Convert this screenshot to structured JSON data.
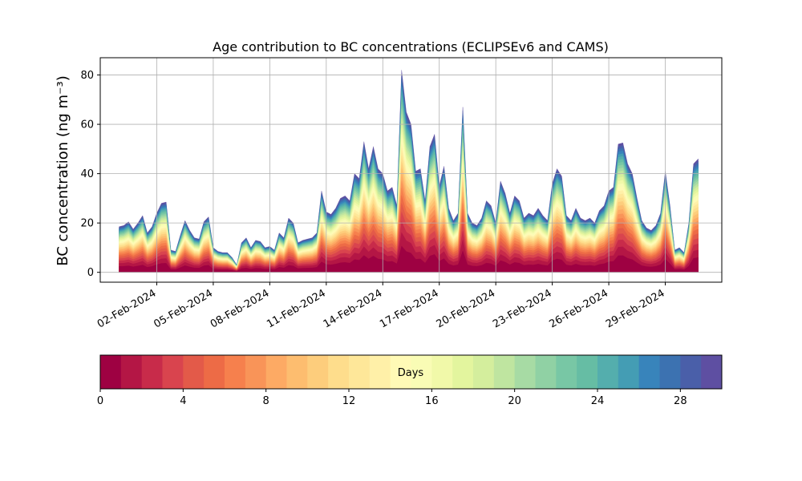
{
  "chart_data": {
    "type": "area",
    "title": "Age contribution to BC concentrations (ECLIPSEv6 and CAMS)",
    "ylabel": "BC concentration (ng m⁻³)",
    "ylim": [
      -4,
      87
    ],
    "yticks": [
      0,
      20,
      40,
      60,
      80
    ],
    "xlim": [
      "2024-01-30",
      "2024-03-03"
    ],
    "xtick_labels": [
      "02-Feb-2024",
      "05-Feb-2024",
      "08-Feb-2024",
      "11-Feb-2024",
      "14-Feb-2024",
      "17-Feb-2024",
      "20-Feb-2024",
      "23-Feb-2024",
      "26-Feb-2024",
      "29-Feb-2024"
    ],
    "xtick_dates": [
      "2024-02-02",
      "2024-02-05",
      "2024-02-08",
      "2024-02-11",
      "2024-02-14",
      "2024-02-17",
      "2024-02-20",
      "2024-02-23",
      "2024-02-26",
      "2024-02-29"
    ],
    "grid": true,
    "colormap": "Spectral",
    "age_bins_days": 30,
    "total_concentration": {
      "x": [
        "2024-01-31 00:00",
        "2024-01-31 06:00",
        "2024-01-31 12:00",
        "2024-01-31 18:00",
        "2024-02-01 00:00",
        "2024-02-01 06:00",
        "2024-02-01 12:00",
        "2024-02-01 18:00",
        "2024-02-02 00:00",
        "2024-02-02 06:00",
        "2024-02-02 12:00",
        "2024-02-02 18:00",
        "2024-02-03 00:00",
        "2024-02-03 06:00",
        "2024-02-03 12:00",
        "2024-02-03 18:00",
        "2024-02-04 00:00",
        "2024-02-04 06:00",
        "2024-02-04 12:00",
        "2024-02-04 18:00",
        "2024-02-05 00:00",
        "2024-02-05 06:00",
        "2024-02-05 12:00",
        "2024-02-05 18:00",
        "2024-02-06 00:00",
        "2024-02-06 06:00",
        "2024-02-06 12:00",
        "2024-02-06 18:00",
        "2024-02-07 00:00",
        "2024-02-07 06:00",
        "2024-02-07 12:00",
        "2024-02-07 18:00",
        "2024-02-08 00:00",
        "2024-02-08 06:00",
        "2024-02-08 12:00",
        "2024-02-08 18:00",
        "2024-02-09 00:00",
        "2024-02-09 06:00",
        "2024-02-09 12:00",
        "2024-02-09 18:00",
        "2024-02-10 00:00",
        "2024-02-10 06:00",
        "2024-02-10 12:00",
        "2024-02-10 18:00",
        "2024-02-11 00:00",
        "2024-02-11 06:00",
        "2024-02-11 12:00",
        "2024-02-11 18:00",
        "2024-02-12 00:00",
        "2024-02-12 06:00",
        "2024-02-12 12:00",
        "2024-02-12 18:00",
        "2024-02-13 00:00",
        "2024-02-13 06:00",
        "2024-02-13 12:00",
        "2024-02-13 18:00",
        "2024-02-14 00:00",
        "2024-02-14 06:00",
        "2024-02-14 12:00",
        "2024-02-14 18:00",
        "2024-02-15 00:00",
        "2024-02-15 06:00",
        "2024-02-15 12:00",
        "2024-02-15 18:00",
        "2024-02-16 00:00",
        "2024-02-16 06:00",
        "2024-02-16 12:00",
        "2024-02-16 18:00",
        "2024-02-17 00:00",
        "2024-02-17 06:00",
        "2024-02-17 12:00",
        "2024-02-17 18:00",
        "2024-02-18 00:00",
        "2024-02-18 06:00",
        "2024-02-18 12:00",
        "2024-02-18 18:00",
        "2024-02-19 00:00",
        "2024-02-19 06:00",
        "2024-02-19 12:00",
        "2024-02-19 18:00",
        "2024-02-20 00:00",
        "2024-02-20 06:00",
        "2024-02-20 12:00",
        "2024-02-20 18:00",
        "2024-02-21 00:00",
        "2024-02-21 06:00",
        "2024-02-21 12:00",
        "2024-02-21 18:00",
        "2024-02-22 00:00",
        "2024-02-22 06:00",
        "2024-02-22 12:00",
        "2024-02-22 18:00",
        "2024-02-23 00:00",
        "2024-02-23 06:00",
        "2024-02-23 12:00",
        "2024-02-23 18:00",
        "2024-02-24 00:00",
        "2024-02-24 06:00",
        "2024-02-24 12:00",
        "2024-02-24 18:00",
        "2024-02-25 00:00",
        "2024-02-25 06:00",
        "2024-02-25 12:00",
        "2024-02-25 18:00",
        "2024-02-26 00:00",
        "2024-02-26 06:00",
        "2024-02-26 12:00",
        "2024-02-26 18:00",
        "2024-02-27 00:00",
        "2024-02-27 06:00",
        "2024-02-27 12:00",
        "2024-02-27 18:00",
        "2024-02-28 00:00",
        "2024-02-28 06:00",
        "2024-02-28 12:00",
        "2024-02-28 18:00",
        "2024-02-29 00:00",
        "2024-02-29 06:00",
        "2024-02-29 12:00",
        "2024-02-29 18:00",
        "2024-03-01 00:00",
        "2024-03-01 06:00",
        "2024-03-01 12:00",
        "2024-03-01 18:00"
      ],
      "y": [
        18.5,
        19.0,
        20.5,
        17.5,
        20.0,
        23.0,
        16.0,
        18.5,
        24.0,
        28.0,
        28.5,
        9.0,
        8.5,
        15.0,
        21.0,
        17.0,
        14.0,
        13.5,
        20.5,
        22.5,
        10.0,
        8.5,
        8.0,
        8.0,
        6.0,
        3.0,
        12.0,
        14.0,
        10.0,
        13.0,
        12.5,
        10.0,
        10.5,
        9.0,
        16.0,
        14.0,
        22.0,
        20.0,
        12.0,
        13.0,
        13.5,
        14.0,
        16.0,
        33.0,
        24.5,
        23.5,
        26.0,
        30.0,
        31.0,
        29.0,
        40.0,
        38.0,
        53.0,
        42.0,
        51.0,
        42.0,
        40.0,
        33.0,
        34.5,
        27.0,
        82.0,
        65.0,
        60.0,
        41.0,
        42.0,
        29.0,
        51.0,
        56.0,
        35.0,
        43.0,
        26.0,
        21.0,
        24.0,
        67.0,
        24.0,
        20.0,
        19.0,
        22.0,
        29.0,
        27.0,
        20.0,
        37.0,
        32.0,
        24.0,
        31.0,
        29.0,
        22.0,
        24.0,
        23.0,
        26.0,
        23.0,
        21.0,
        36.0,
        42.0,
        39.0,
        23.0,
        21.0,
        26.0,
        22.0,
        21.0,
        22.0,
        20.0,
        25.0,
        27.0,
        33.0,
        34.5,
        52.0,
        52.5,
        44.0,
        40.0,
        30.0,
        21.0,
        18.0,
        17.0,
        19.0,
        24.0,
        41.0,
        27.0,
        9.0,
        10.0,
        8.0,
        20.0,
        44.0,
        46.0
      ]
    },
    "colorbar": {
      "label": "Days",
      "min": 0,
      "max": 30,
      "ticks": [
        0,
        4,
        8,
        12,
        16,
        20,
        24,
        28
      ],
      "colors": [
        "#9e0142",
        "#b41645",
        "#c82b4a",
        "#d9444e",
        "#e35a49",
        "#ed6b46",
        "#f6804d",
        "#f99458",
        "#fdaa64",
        "#fdbd6f",
        "#fdcd7c",
        "#fedd8c",
        "#fee799",
        "#fff0a8",
        "#fffab6",
        "#f9fcb5",
        "#f1f9a9",
        "#e3f59e",
        "#d4ee9d",
        "#bfe5a0",
        "#a7dba4",
        "#90d1a4",
        "#78c7a5",
        "#66bda4",
        "#54aead",
        "#449db4",
        "#3884bb",
        "#3c72b1",
        "#4a5fa9",
        "#5e4fa2"
      ]
    }
  }
}
